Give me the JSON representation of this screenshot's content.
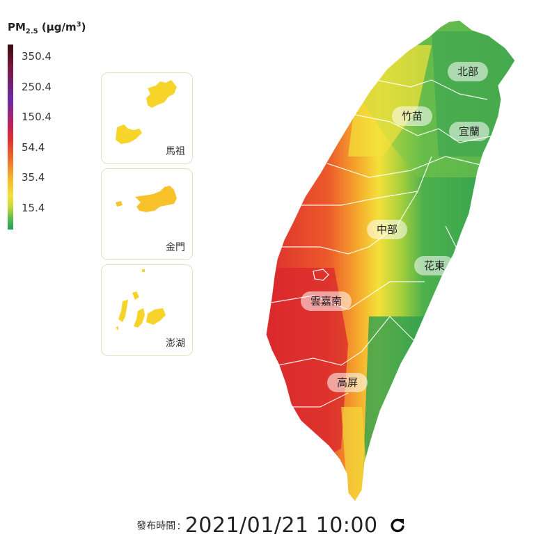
{
  "legend": {
    "title": "PM",
    "title_sub": "2.5",
    "title_unit": "(μg/m",
    "title_unit_sup": "3",
    "title_unit_close": ")",
    "ticks": [
      "350.4",
      "250.4",
      "150.4",
      "54.4",
      "35.4",
      "15.4"
    ]
  },
  "insets": [
    {
      "label": "馬祖",
      "color": "#f7d429"
    },
    {
      "label": "金門",
      "color": "#f7c22a"
    },
    {
      "label": "澎湖",
      "color": "#f7d229"
    }
  ],
  "regions": [
    {
      "label": "北部"
    },
    {
      "label": "竹苗"
    },
    {
      "label": "宜蘭"
    },
    {
      "label": "中部"
    },
    {
      "label": "花東"
    },
    {
      "label": "雲嘉南"
    },
    {
      "label": "高屏"
    }
  ],
  "footer": {
    "caption": "發布時間",
    "separator": ":",
    "timestamp": "2021/01/21 10:00",
    "refresh_icon": "refresh-icon"
  },
  "colors": {
    "good": "#2ea04e",
    "moderate": "#f4e13a",
    "orange": "#f5a12c",
    "red": "#d9272e"
  }
}
